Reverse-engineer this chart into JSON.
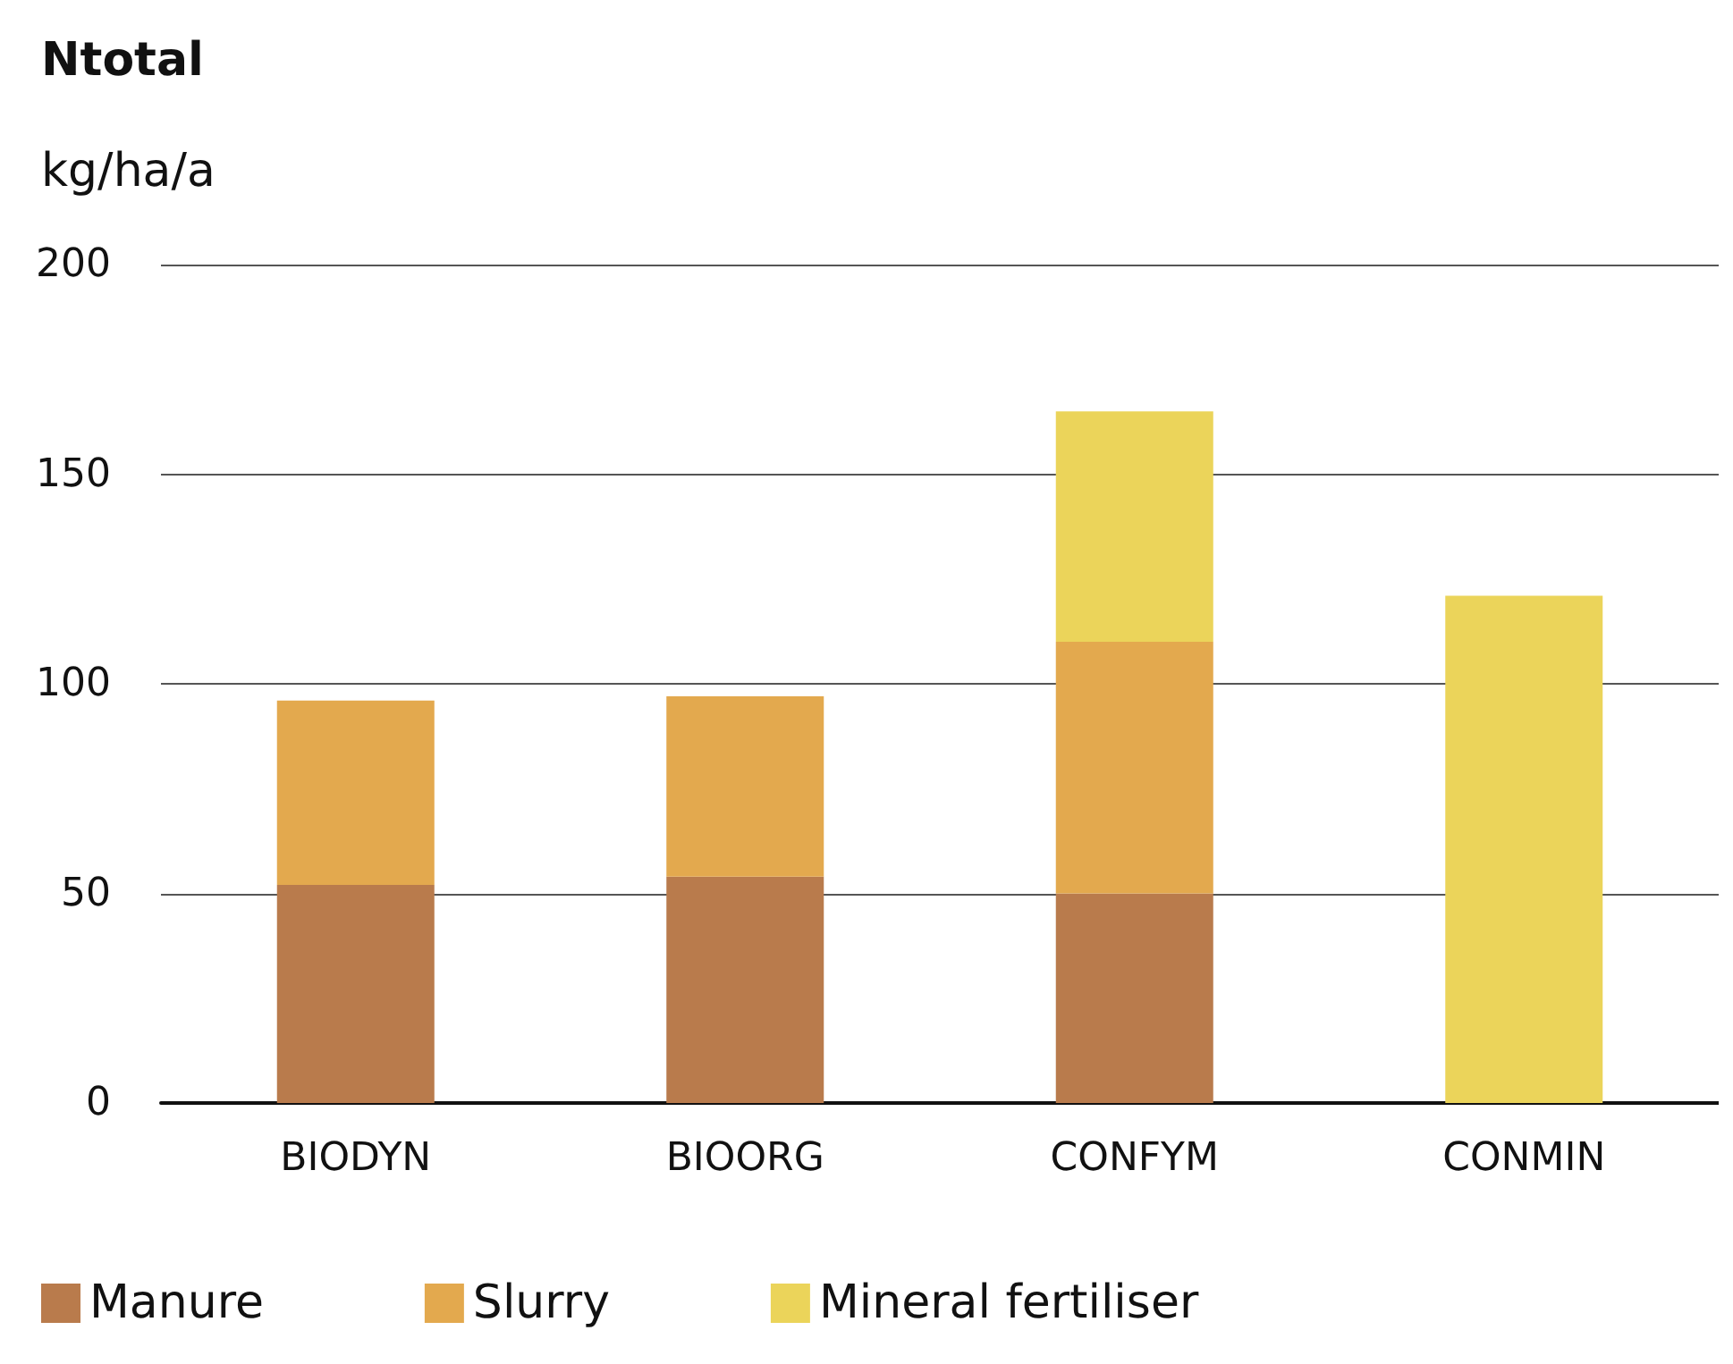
{
  "chart_data": {
    "type": "bar",
    "title": "Ntotal",
    "ylabel": "kg/ha/a",
    "stacked": true,
    "categories": [
      "BIODYN",
      "BIOORG",
      "CONFYM",
      "CONMIN"
    ],
    "series": [
      {
        "name": "Manure",
        "color": "#b97b4c",
        "values": [
          52,
          54,
          50,
          0
        ]
      },
      {
        "name": "Slurry",
        "color": "#e3a94e",
        "values": [
          44,
          43,
          60,
          0
        ]
      },
      {
        "name": "Mineral fertiliser",
        "color": "#ebd45a",
        "values": [
          0,
          0,
          55,
          121
        ]
      }
    ],
    "ylim": [
      0,
      200
    ],
    "yticks": [
      0,
      50,
      100,
      150,
      200
    ],
    "grid": "y",
    "legend": "bottom left"
  }
}
